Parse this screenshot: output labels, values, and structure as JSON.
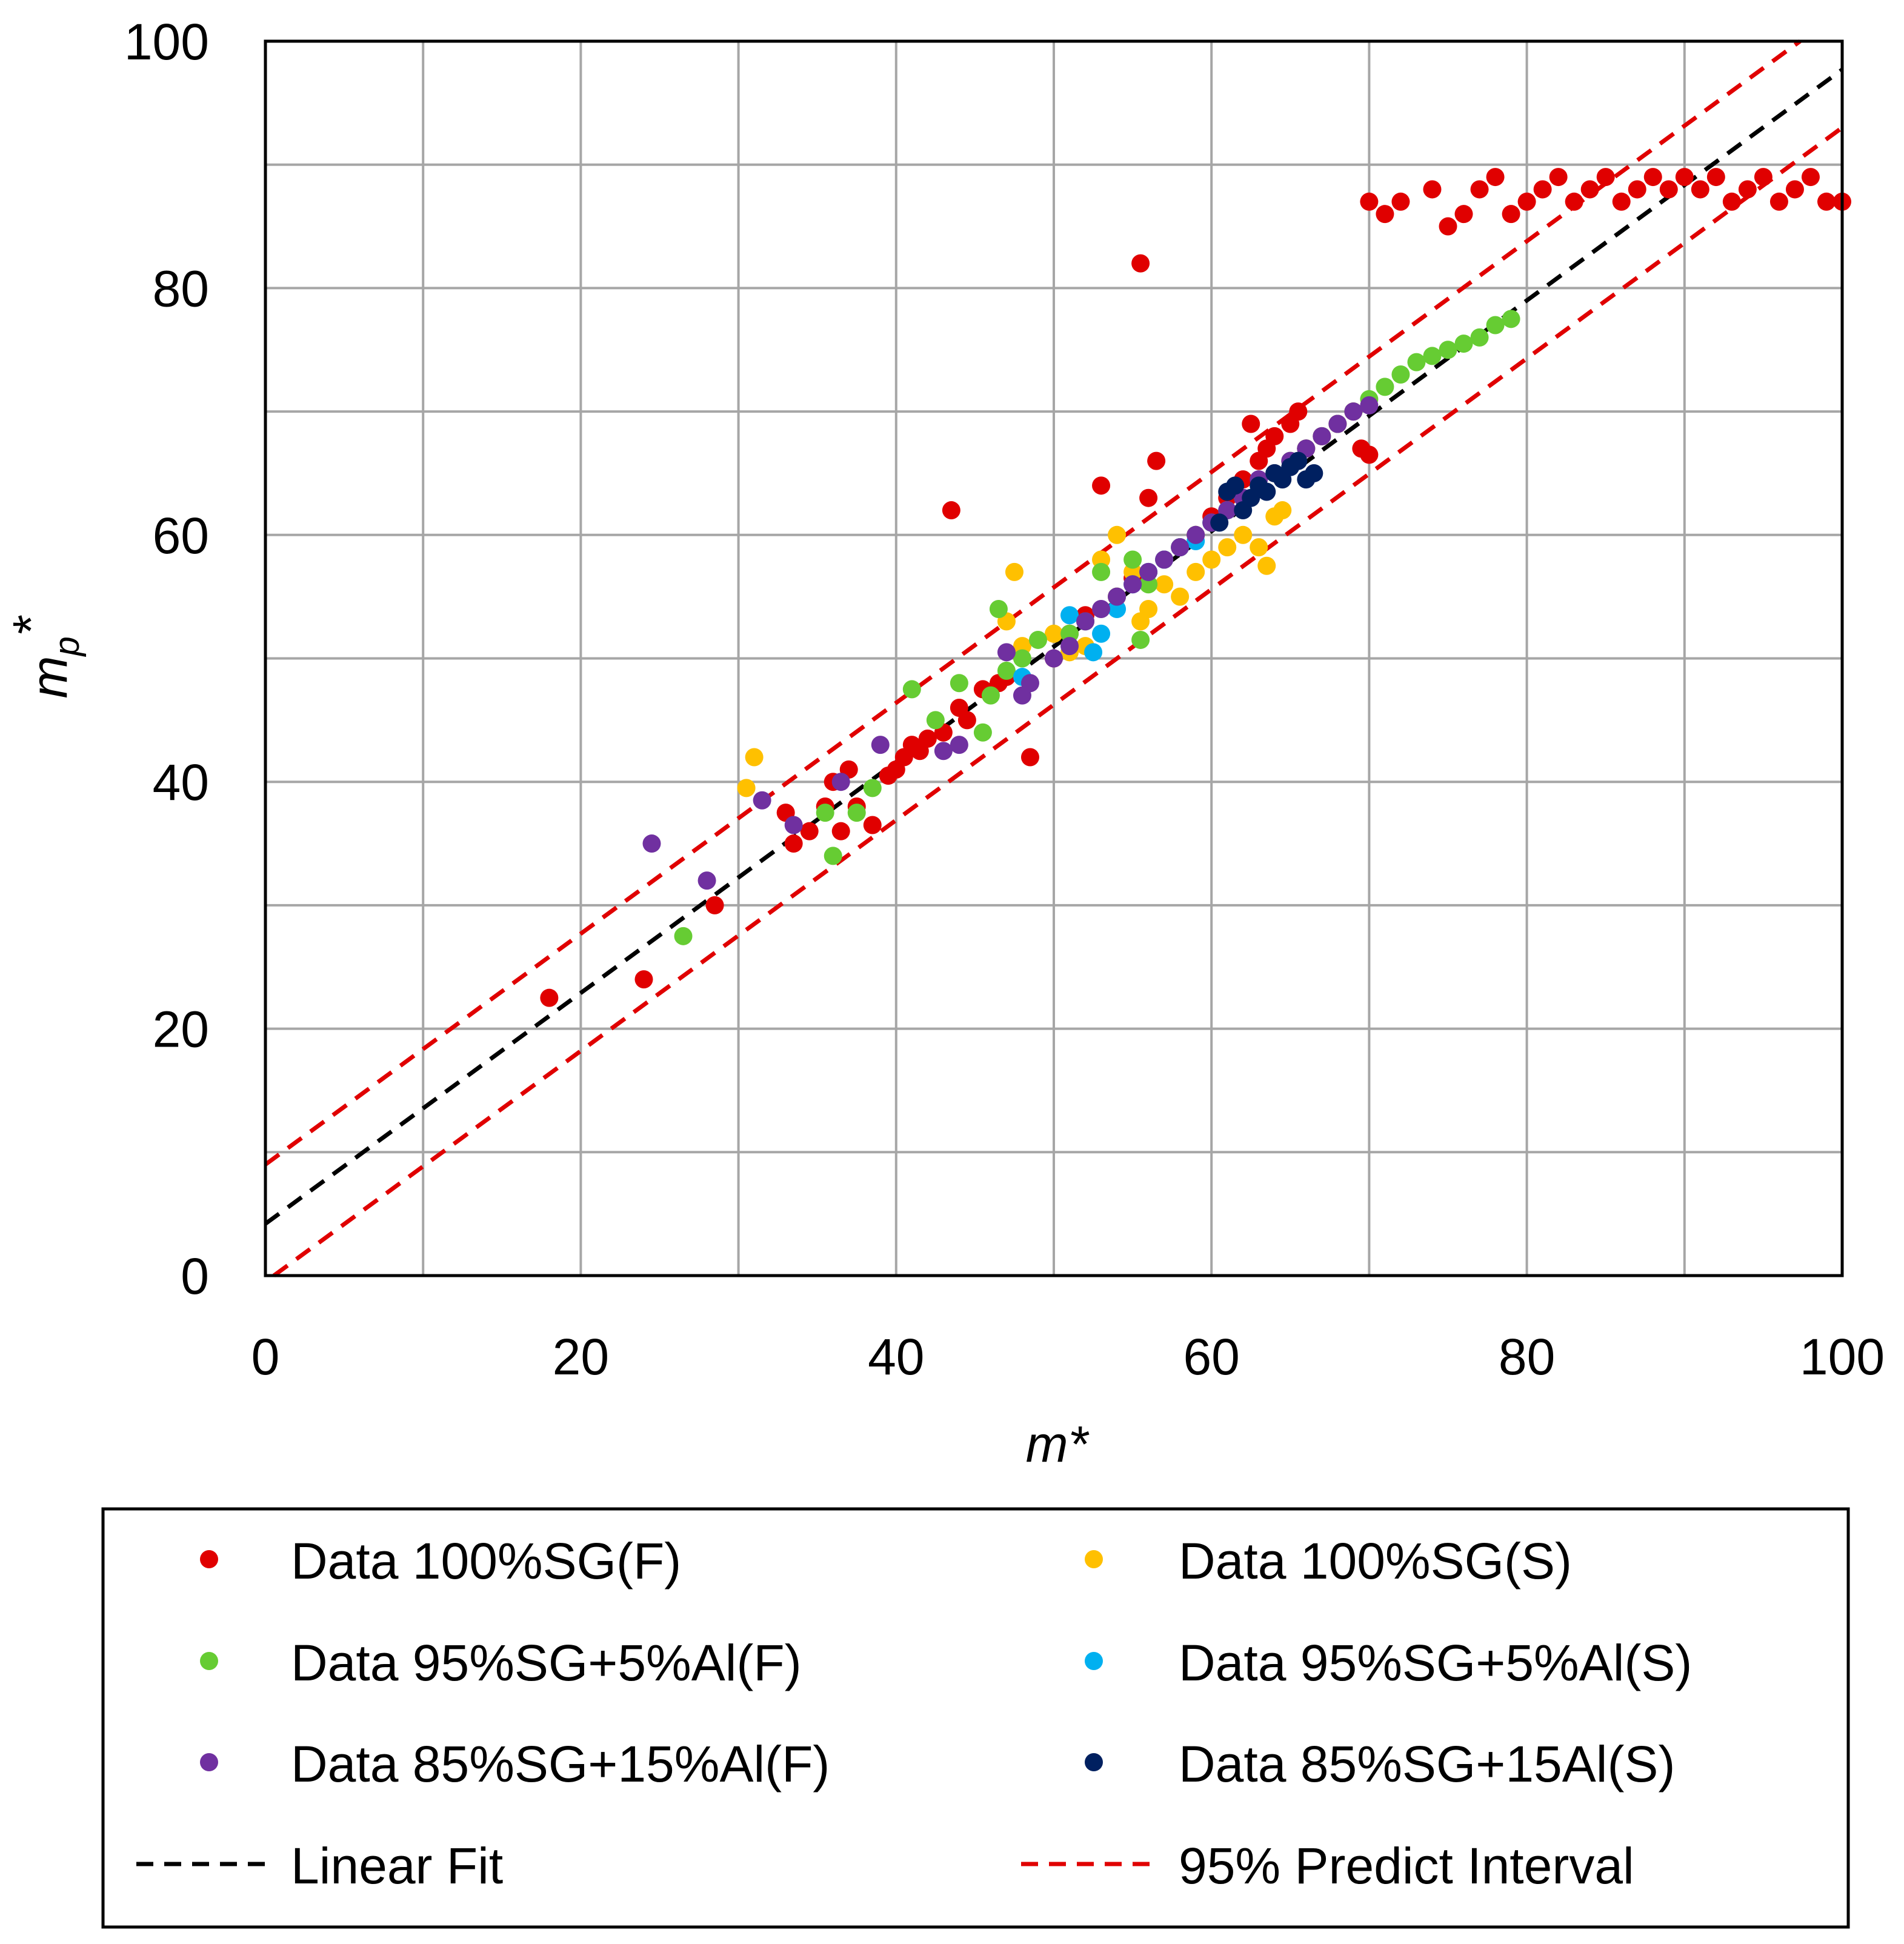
{
  "chart_data": {
    "type": "scatter",
    "title": "",
    "xlabel": "m*",
    "ylabel": "m_p*",
    "xlim": [
      0,
      100
    ],
    "ylim": [
      0,
      100
    ],
    "x_ticks": [
      "0",
      "20",
      "40",
      "60",
      "80",
      "100"
    ],
    "y_ticks": [
      "0",
      "20",
      "40",
      "60",
      "80",
      "100"
    ],
    "grid": true,
    "legend_position": "bottom",
    "series": [
      {
        "name": "Data 100%SG(F)",
        "color": "#e00000",
        "points": [
          [
            18,
            22.5
          ],
          [
            24,
            24
          ],
          [
            28.5,
            30
          ],
          [
            33,
            37.5
          ],
          [
            33.5,
            35
          ],
          [
            34.5,
            36
          ],
          [
            35.5,
            38
          ],
          [
            36,
            40
          ],
          [
            36.5,
            36
          ],
          [
            37,
            41
          ],
          [
            37.5,
            38
          ],
          [
            38.5,
            36.5
          ],
          [
            39.5,
            40.5
          ],
          [
            40,
            41
          ],
          [
            40.5,
            42
          ],
          [
            41,
            43
          ],
          [
            41.5,
            42.5
          ],
          [
            42,
            43.5
          ],
          [
            43,
            44
          ],
          [
            43.5,
            62
          ],
          [
            44,
            46
          ],
          [
            44.5,
            45
          ],
          [
            45.5,
            47.5
          ],
          [
            46.5,
            48
          ],
          [
            47,
            48.5
          ],
          [
            48.5,
            42
          ],
          [
            50,
            50
          ],
          [
            51,
            52
          ],
          [
            52,
            53.5
          ],
          [
            53,
            64
          ],
          [
            54,
            55
          ],
          [
            55,
            56.5
          ],
          [
            55.5,
            82
          ],
          [
            56,
            63
          ],
          [
            56.5,
            66
          ],
          [
            57,
            58
          ],
          [
            58,
            59
          ],
          [
            59,
            60
          ],
          [
            60,
            61.5
          ],
          [
            61,
            63
          ],
          [
            62,
            64.5
          ],
          [
            62.5,
            69
          ],
          [
            63,
            66
          ],
          [
            63.5,
            67
          ],
          [
            64,
            68
          ],
          [
            65,
            69
          ],
          [
            65.5,
            70
          ],
          [
            66,
            67
          ],
          [
            67,
            68
          ],
          [
            68,
            69
          ],
          [
            69,
            70
          ],
          [
            69.5,
            67
          ],
          [
            70,
            66.5
          ],
          [
            70,
            87
          ],
          [
            71,
            86
          ],
          [
            72,
            87
          ],
          [
            74,
            88
          ],
          [
            75,
            85
          ],
          [
            76,
            86
          ],
          [
            77,
            88
          ],
          [
            78,
            89
          ],
          [
            79,
            86
          ],
          [
            80,
            87
          ],
          [
            81,
            88
          ],
          [
            82,
            89
          ],
          [
            83,
            87
          ],
          [
            84,
            88
          ],
          [
            85,
            89
          ],
          [
            86,
            87
          ],
          [
            87,
            88
          ],
          [
            88,
            89
          ],
          [
            89,
            88
          ],
          [
            90,
            89
          ],
          [
            91,
            88
          ],
          [
            92,
            89
          ],
          [
            93,
            87
          ],
          [
            94,
            88
          ],
          [
            95,
            89
          ],
          [
            96,
            87
          ],
          [
            97,
            88
          ],
          [
            98,
            89
          ],
          [
            99,
            87
          ],
          [
            100,
            87
          ]
        ]
      },
      {
        "name": "Data 100%SG(S)",
        "color": "#ffc000",
        "points": [
          [
            30.5,
            39.5
          ],
          [
            31,
            42
          ],
          [
            47,
            53
          ],
          [
            47.5,
            57
          ],
          [
            48,
            51
          ],
          [
            50,
            52
          ],
          [
            51,
            50.5
          ],
          [
            52,
            51
          ],
          [
            53,
            58
          ],
          [
            54,
            60
          ],
          [
            55,
            57
          ],
          [
            55.5,
            53
          ],
          [
            56,
            54
          ],
          [
            57,
            56
          ],
          [
            58,
            55
          ],
          [
            59,
            57
          ],
          [
            60,
            58
          ],
          [
            61,
            59
          ],
          [
            62,
            60
          ],
          [
            63,
            59
          ],
          [
            63.5,
            57.5
          ],
          [
            64,
            61.5
          ],
          [
            64.5,
            62
          ]
        ]
      },
      {
        "name": "Data 95%SG+5%Al(F)",
        "color": "#66cc33",
        "points": [
          [
            26.5,
            27.5
          ],
          [
            35.5,
            37.5
          ],
          [
            36,
            34
          ],
          [
            37.5,
            37.5
          ],
          [
            38.5,
            39.5
          ],
          [
            41,
            47.5
          ],
          [
            42.5,
            45
          ],
          [
            44,
            48
          ],
          [
            45.5,
            44
          ],
          [
            46,
            47
          ],
          [
            46.5,
            54
          ],
          [
            47,
            49
          ],
          [
            48,
            50
          ],
          [
            49,
            51.5
          ],
          [
            51,
            52
          ],
          [
            52,
            53
          ],
          [
            53,
            57
          ],
          [
            54,
            55
          ],
          [
            55,
            58
          ],
          [
            55.5,
            51.5
          ],
          [
            56,
            56
          ],
          [
            57,
            58
          ],
          [
            58,
            59
          ],
          [
            59,
            60
          ],
          [
            60,
            61
          ],
          [
            61,
            62
          ],
          [
            62,
            63
          ],
          [
            63,
            64
          ],
          [
            64,
            65
          ],
          [
            65,
            66
          ],
          [
            66,
            67
          ],
          [
            67,
            68
          ],
          [
            68,
            69
          ],
          [
            69,
            70
          ],
          [
            70,
            71
          ],
          [
            71,
            72
          ],
          [
            72,
            73
          ],
          [
            73,
            74
          ],
          [
            74,
            74.5
          ],
          [
            75,
            75
          ],
          [
            76,
            75.5
          ],
          [
            77,
            76
          ],
          [
            78,
            77
          ],
          [
            79,
            77.5
          ]
        ]
      },
      {
        "name": "Data 95%SG+5%Al(S)",
        "color": "#00b0f0",
        "points": [
          [
            48,
            48.5
          ],
          [
            51,
            53.5
          ],
          [
            52.5,
            50.5
          ],
          [
            53,
            52
          ],
          [
            54,
            54
          ],
          [
            55,
            56
          ],
          [
            56,
            57
          ],
          [
            57,
            58
          ],
          [
            58,
            59
          ],
          [
            59,
            59.5
          ],
          [
            60,
            61
          ],
          [
            61,
            62
          ],
          [
            62,
            63
          ],
          [
            63,
            64
          ]
        ]
      },
      {
        "name": "Data 85%SG+15%Al(F)",
        "color": "#7030a0",
        "points": [
          [
            24.5,
            35
          ],
          [
            28,
            32
          ],
          [
            31.5,
            38.5
          ],
          [
            33.5,
            36.5
          ],
          [
            36.5,
            40
          ],
          [
            39,
            43
          ],
          [
            43,
            42.5
          ],
          [
            44,
            43
          ],
          [
            47,
            50.5
          ],
          [
            48,
            47
          ],
          [
            48.5,
            48
          ],
          [
            50,
            50
          ],
          [
            51,
            51
          ],
          [
            52,
            53
          ],
          [
            53,
            54
          ],
          [
            54,
            55
          ],
          [
            55,
            56
          ],
          [
            56,
            57
          ],
          [
            57,
            58
          ],
          [
            58,
            59
          ],
          [
            59,
            60
          ],
          [
            60,
            61
          ],
          [
            61,
            62
          ],
          [
            62,
            63
          ],
          [
            63,
            64.5
          ],
          [
            64,
            65
          ],
          [
            65,
            66
          ],
          [
            66,
            67
          ],
          [
            67,
            68
          ],
          [
            68,
            69
          ],
          [
            69,
            70
          ],
          [
            70,
            70.5
          ]
        ]
      },
      {
        "name": "Data 85%SG+15Al(S)",
        "color": "#002060",
        "points": [
          [
            60.5,
            61
          ],
          [
            61,
            63.5
          ],
          [
            61.5,
            64
          ],
          [
            62,
            62
          ],
          [
            62.5,
            63
          ],
          [
            63,
            64
          ],
          [
            63.5,
            63.5
          ],
          [
            64,
            65
          ],
          [
            64.5,
            64.5
          ],
          [
            65,
            65.5
          ],
          [
            65.5,
            66
          ],
          [
            66,
            64.5
          ],
          [
            66.5,
            65
          ]
        ]
      }
    ],
    "lines": [
      {
        "name": "Linear Fit",
        "color": "#000000",
        "slope": 0.935,
        "intercept": 4.2
      },
      {
        "name": "95% Predict Interval",
        "color": "#e00000",
        "slope": 0.935,
        "intercept": 9.0
      },
      {
        "name": "95% Predict Interval lower",
        "color": "#e00000",
        "slope": 0.935,
        "intercept": -0.5
      }
    ]
  },
  "legend": {
    "items": [
      {
        "label": "Data 100%SG(F)",
        "color": "#e00000",
        "kind": "marker"
      },
      {
        "label": "Data 100%SG(S)",
        "color": "#ffc000",
        "kind": "marker"
      },
      {
        "label": "Data 95%SG+5%Al(F)",
        "color": "#66cc33",
        "kind": "marker"
      },
      {
        "label": "Data 95%SG+5%Al(S)",
        "color": "#00b0f0",
        "kind": "marker"
      },
      {
        "label": "Data 85%SG+15%Al(F)",
        "color": "#7030a0",
        "kind": "marker"
      },
      {
        "label": "Data 85%SG+15Al(S)",
        "color": "#002060",
        "kind": "marker"
      },
      {
        "label": "Linear Fit",
        "color": "#000000",
        "kind": "dash"
      },
      {
        "label": "95% Predict Interval",
        "color": "#e00000",
        "kind": "dash"
      }
    ]
  }
}
